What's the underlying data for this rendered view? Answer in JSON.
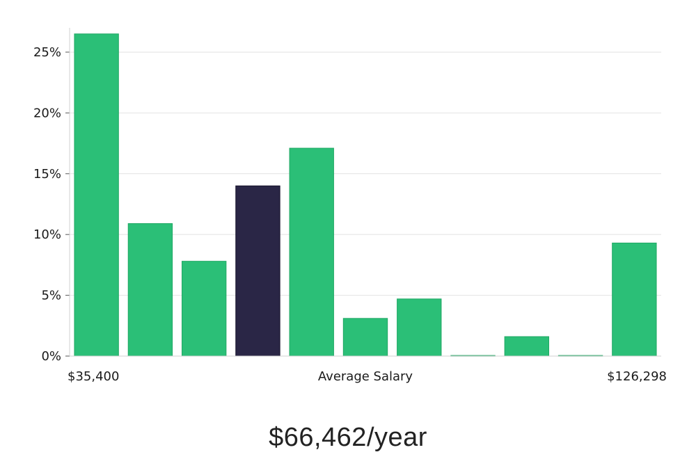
{
  "chart_data": {
    "type": "bar",
    "categories": [
      "1",
      "2",
      "3",
      "4",
      "5",
      "6",
      "7",
      "8",
      "9",
      "10",
      "11"
    ],
    "values": [
      26.5,
      10.9,
      7.8,
      14.0,
      17.1,
      3.1,
      4.7,
      0.05,
      1.6,
      0.05,
      9.3
    ],
    "highlight_index": 3,
    "ylim": [
      0,
      27
    ],
    "yticks": [
      0,
      5,
      10,
      15,
      20,
      25
    ],
    "ytick_suffix": "%",
    "grid": true,
    "xlabel": "Average Salary",
    "x_min_label": "$35,400",
    "x_max_label": "$126,298",
    "colors": {
      "bar": "#2bbf77",
      "highlight": "#2a2646",
      "grid": "#e2e2e2",
      "axis": "#d0d0d0"
    }
  },
  "summary": {
    "salary_text": "$66,462/year"
  }
}
